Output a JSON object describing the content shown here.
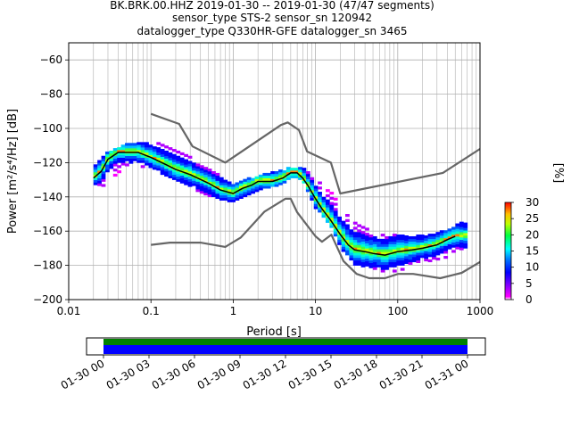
{
  "chart_data": [
    {
      "type": "heatmap",
      "title_lines": [
        "BK.BRK.00.HHZ   2019-01-30 -- 2019-01-30  (47/47 segments)",
        "sensor_type STS-2 sensor_sn 120942",
        "datalogger_type Q330HR-GFE datalogger_sn 3465"
      ],
      "xlabel": "Period [s]",
      "ylabel": "Power [m²/s⁴/Hz] [dB]",
      "xscale": "log",
      "xlim": [
        0.01,
        1000
      ],
      "ylim": [
        -200,
        -50
      ],
      "xtick_labels": [
        "0.01",
        "0.1",
        "1",
        "10",
        "100",
        "1000"
      ],
      "ytick_labels": [
        "−60",
        "−80",
        "−100",
        "−120",
        "−140",
        "−160",
        "−180",
        "−200"
      ],
      "ytick_values": [
        -60,
        -80,
        -100,
        -120,
        -140,
        -160,
        -180,
        -200
      ],
      "grid": true,
      "colorbar": {
        "label": "[%]",
        "ticks": [
          "0",
          "5",
          "10",
          "15",
          "20",
          "25",
          "30"
        ],
        "range": [
          0,
          30
        ]
      },
      "series": [
        {
          "style": "black-mode-line",
          "x": [
            0.02,
            0.025,
            0.03,
            0.04,
            0.05,
            0.07,
            0.1,
            0.15,
            0.2,
            0.3,
            0.5,
            0.7,
            1,
            1.3,
            1.7,
            2,
            3,
            4,
            5,
            6,
            7,
            8,
            10,
            12,
            15,
            20,
            25,
            30,
            40,
            50,
            70,
            100,
            150,
            200,
            300,
            400,
            500
          ],
          "y": [
            -129,
            -125,
            -118,
            -114,
            -114,
            -114,
            -117,
            -121,
            -124,
            -127,
            -132,
            -136,
            -138,
            -135,
            -133,
            -131,
            -131,
            -129,
            -126,
            -126,
            -129,
            -133,
            -141,
            -147,
            -153,
            -162,
            -168,
            -171,
            -172,
            -173,
            -174,
            -172,
            -171,
            -170,
            -168,
            -165,
            -163
          ]
        },
        {
          "style": "gray-high-noise-model",
          "x": [
            0.1,
            0.22,
            0.32,
            0.8,
            3.8,
            4.6,
            6.3,
            7.9,
            15.4,
            20,
            354,
            1000
          ],
          "y": [
            -91.5,
            -97.4,
            -110.5,
            -120,
            -98,
            -96.5,
            -101,
            -113.5,
            -120,
            -138,
            -126,
            -112
          ]
        },
        {
          "style": "gray-low-noise-model",
          "x": [
            0.1,
            0.17,
            0.4,
            0.8,
            1.24,
            2.4,
            4.3,
            5,
            6,
            10,
            12,
            15.6,
            21.9,
            31.6,
            45,
            70,
            101,
            154,
            328,
            600,
            1000
          ],
          "y": [
            -168,
            -166.7,
            -166.7,
            -169.2,
            -163.7,
            -148.6,
            -141.1,
            -141.1,
            -149,
            -163,
            -166.2,
            -162.1,
            -177.5,
            -185,
            -187.5,
            -187.5,
            -185,
            -185,
            -187.5,
            -184.4,
            -178
          ]
        }
      ],
      "histogram_bands": [
        {
          "x": [
            0.02,
            0.03,
            0.05,
            0.1,
            0.2,
            0.5,
            1,
            2,
            4,
            5,
            7,
            10,
            15,
            20,
            30,
            50,
            100,
            200,
            400,
            700
          ],
          "ymin": [
            -137,
            -133,
            -122,
            -124,
            -131,
            -140,
            -144,
            -137,
            -133,
            -129,
            -131,
            -147,
            -157,
            -170,
            -180,
            -184,
            -184,
            -180,
            -176,
            -170
          ],
          "ymax": [
            -122,
            -114,
            -110,
            -108,
            -112,
            -124,
            -133,
            -128,
            -125,
            -123,
            -124,
            -129,
            -136,
            -146,
            -154,
            -162,
            -162,
            -163,
            -160,
            -152
          ]
        }
      ]
    },
    {
      "type": "timeline",
      "tick_labels": [
        "01-30 00",
        "01-30 03",
        "01-30 06",
        "01-30 09",
        "01-30 12",
        "01-30 15",
        "01-30 18",
        "01-30 21",
        "01-31 00"
      ],
      "colors": {
        "coverage_top": "#008000",
        "coverage_bottom": "#0000ff"
      }
    }
  ]
}
